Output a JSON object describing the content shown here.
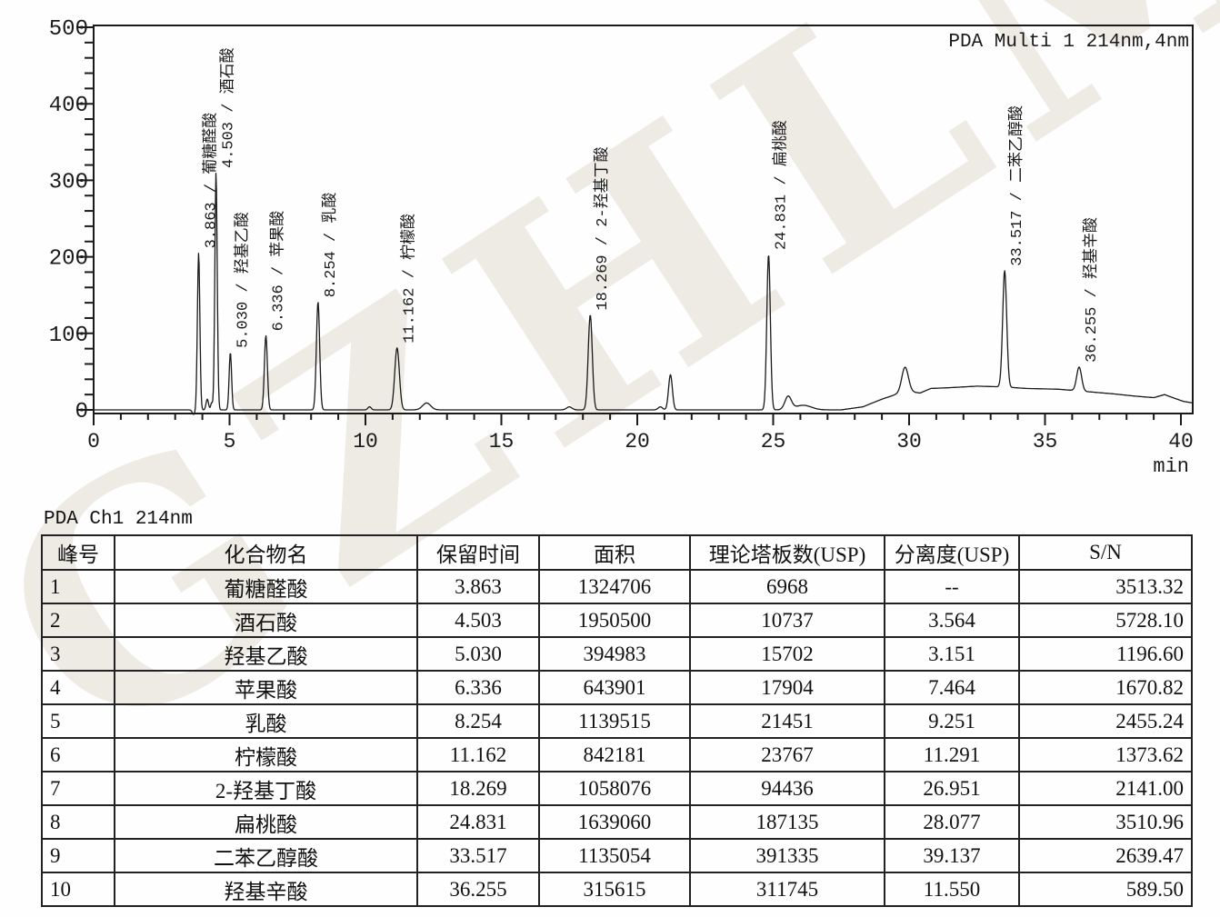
{
  "watermark": {
    "text": "GZHLM"
  },
  "chromatogram": {
    "detector_label": "PDA Multi 1 214nm,4nm",
    "x_unit": "min"
  },
  "chart_data": {
    "type": "line",
    "title": "PDA Multi 1 214nm,4nm",
    "xlabel": "min",
    "ylabel": "",
    "xlim": [
      0,
      40.4
    ],
    "ylim": [
      0,
      500
    ],
    "x_major_ticks": [
      0,
      5,
      10,
      15,
      20,
      25,
      30,
      35,
      40
    ],
    "x_minor_step": 1,
    "y_major_ticks": [
      0,
      100,
      200,
      300,
      400,
      500
    ],
    "y_minor_step": 20,
    "grid": false,
    "legend": "none",
    "peaks": [
      {
        "no": 1,
        "rt": "3.863",
        "name": "葡糖醛酸",
        "t": 3.863,
        "apex": 205,
        "sigma": 0.045
      },
      {
        "no": 2,
        "rt": "4.503",
        "name": "酒石酸",
        "t": 4.503,
        "apex": 310,
        "sigma": 0.045
      },
      {
        "no": 3,
        "rt": "5.030",
        "name": "羟基乙酸",
        "t": 5.03,
        "apex": 75,
        "sigma": 0.045
      },
      {
        "no": 4,
        "rt": "6.336",
        "name": "苹果酸",
        "t": 6.336,
        "apex": 97,
        "sigma": 0.055
      },
      {
        "no": 5,
        "rt": "8.254",
        "name": "乳酸",
        "t": 8.254,
        "apex": 141,
        "sigma": 0.06
      },
      {
        "no": 6,
        "rt": "11.162",
        "name": "柠檬酸",
        "t": 11.162,
        "apex": 81,
        "sigma": 0.085
      },
      {
        "no": 7,
        "rt": "18.269",
        "name": "2-羟基丁酸",
        "t": 18.269,
        "apex": 124,
        "sigma": 0.075
      },
      {
        "no": 8,
        "rt": "24.831",
        "name": "扁桃酸",
        "t": 24.831,
        "apex": 203,
        "sigma": 0.065
      },
      {
        "no": 9,
        "rt": "33.517",
        "name": "二苯乙醇酸",
        "t": 33.517,
        "apex": 182,
        "sigma": 0.075
      },
      {
        "no": 10,
        "rt": "36.255",
        "name": "羟基辛酸",
        "t": 36.255,
        "apex": 56,
        "sigma": 0.09
      }
    ],
    "unlabeled_features": [
      {
        "t": 3.68,
        "amp": -6,
        "sigma": 0.05
      },
      {
        "t": 4.18,
        "amp": 14,
        "sigma": 0.045
      },
      {
        "t": 4.34,
        "amp": 9,
        "sigma": 0.035
      },
      {
        "t": 10.15,
        "amp": 4,
        "sigma": 0.06
      },
      {
        "t": 12.25,
        "amp": 9,
        "sigma": 0.15
      },
      {
        "t": 17.5,
        "amp": 4,
        "sigma": 0.1
      },
      {
        "t": 20.85,
        "amp": 4,
        "sigma": 0.08
      },
      {
        "t": 21.22,
        "amp": 46,
        "sigma": 0.07
      },
      {
        "t": 25.55,
        "amp": 17,
        "sigma": 0.12
      },
      {
        "t": 26.1,
        "amp": 6,
        "sigma": 0.3
      },
      {
        "t": 29.85,
        "amp": 33,
        "sigma": 0.12
      }
    ],
    "baseline_drift": [
      [
        0,
        0
      ],
      [
        27.5,
        0
      ],
      [
        28.3,
        4
      ],
      [
        29.0,
        14
      ],
      [
        29.5,
        20
      ],
      [
        30.0,
        24
      ],
      [
        30.4,
        22
      ],
      [
        30.8,
        28
      ],
      [
        31.5,
        29
      ],
      [
        32.5,
        31
      ],
      [
        33.5,
        30
      ],
      [
        34.3,
        28
      ],
      [
        35.5,
        27
      ],
      [
        36.5,
        24
      ],
      [
        37.5,
        21
      ],
      [
        38.3,
        18
      ],
      [
        39.0,
        16
      ],
      [
        39.4,
        20
      ],
      [
        39.7,
        16
      ],
      [
        40.1,
        11
      ],
      [
        40.45,
        9
      ]
    ]
  },
  "table": {
    "title": "PDA Ch1 214nm",
    "headers": [
      "峰号",
      "化合物名",
      "保留时间",
      "面积",
      "理论塔板数(USP)",
      "分离度(USP)",
      "S/N"
    ],
    "rows": [
      [
        "1",
        "葡糖醛酸",
        "3.863",
        "1324706",
        "6968",
        "--",
        "3513.32"
      ],
      [
        "2",
        "酒石酸",
        "4.503",
        "1950500",
        "10737",
        "3.564",
        "5728.10"
      ],
      [
        "3",
        "羟基乙酸",
        "5.030",
        "394983",
        "15702",
        "3.151",
        "1196.60"
      ],
      [
        "4",
        "苹果酸",
        "6.336",
        "643901",
        "17904",
        "7.464",
        "1670.82"
      ],
      [
        "5",
        "乳酸",
        "8.254",
        "1139515",
        "21451",
        "9.251",
        "2455.24"
      ],
      [
        "6",
        "柠檬酸",
        "11.162",
        "842181",
        "23767",
        "11.291",
        "1373.62"
      ],
      [
        "7",
        "2-羟基丁酸",
        "18.269",
        "1058076",
        "94436",
        "26.951",
        "2141.00"
      ],
      [
        "8",
        "扁桃酸",
        "24.831",
        "1639060",
        "187135",
        "28.077",
        "3510.96"
      ],
      [
        "9",
        "二苯乙醇酸",
        "33.517",
        "1135054",
        "391335",
        "39.137",
        "2639.47"
      ],
      [
        "10",
        "羟基辛酸",
        "36.255",
        "315615",
        "311745",
        "11.550",
        "589.50"
      ]
    ]
  }
}
